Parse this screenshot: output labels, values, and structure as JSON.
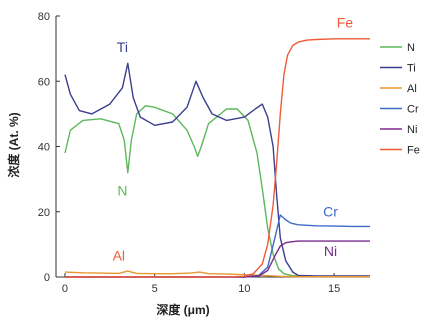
{
  "chart_data": {
    "type": "line",
    "xlabel": "深度 (μm)",
    "ylabel": "浓度 (At. %)",
    "xlim": [
      -0.5,
      17
    ],
    "ylim": [
      0,
      80
    ],
    "x_ticks": [
      0,
      5,
      10,
      15
    ],
    "y_ticks": [
      0,
      20,
      40,
      60,
      80
    ],
    "grid": false,
    "legend_position": "right",
    "series": [
      {
        "name": "N",
        "color": "#5cb85c",
        "x": [
          0,
          0.3,
          1,
          2,
          3,
          3.3,
          3.5,
          3.7,
          4,
          4.5,
          5,
          6,
          6.8,
          7.2,
          7.4,
          7.6,
          8,
          9,
          9.6,
          10.2,
          10.7,
          11,
          11.3,
          11.6,
          11.9,
          12.2,
          12.6,
          13,
          14,
          15,
          16,
          17
        ],
        "y": [
          38,
          45,
          48,
          48.5,
          47,
          42,
          32,
          42,
          50,
          52.5,
          52,
          50,
          45,
          40,
          37,
          40,
          47,
          51.5,
          51.5,
          48,
          38,
          27,
          15,
          7,
          2.5,
          1,
          0.5,
          0.3,
          0.2,
          0.2,
          0.2,
          0.2
        ]
      },
      {
        "name": "Ti",
        "color": "#3b3f8f",
        "x": [
          0,
          0.3,
          0.8,
          1.5,
          2.5,
          3.2,
          3.5,
          3.8,
          4.2,
          5,
          6,
          6.8,
          7.3,
          7.7,
          8.2,
          9,
          10,
          10.6,
          11,
          11.3,
          11.6,
          11.8,
          12,
          12.3,
          12.7,
          13,
          14,
          15,
          16,
          17
        ],
        "y": [
          62,
          56,
          51,
          50,
          53,
          58,
          65.5,
          55,
          49,
          46.5,
          47.5,
          52,
          60,
          55,
          50,
          48,
          49,
          51.5,
          53,
          49,
          40,
          25,
          12,
          5,
          1.5,
          0.5,
          0.3,
          0.3,
          0.3,
          0.3
        ]
      },
      {
        "name": "Al",
        "color": "#e8962e",
        "x": [
          0,
          1,
          2,
          3,
          3.5,
          4,
          5,
          6,
          7,
          7.5,
          8,
          9,
          10,
          11,
          12,
          13,
          14,
          15,
          16,
          17
        ],
        "y": [
          1.5,
          1.3,
          1.2,
          1.1,
          1.8,
          1.1,
          1.0,
          1.0,
          1.2,
          1.5,
          1.0,
          0.9,
          0.7,
          0.5,
          0.2,
          0.1,
          0.1,
          0.1,
          0.1,
          0.1
        ]
      },
      {
        "name": "Cr",
        "color": "#3d6bc8",
        "x": [
          0,
          5,
          10,
          10.8,
          11.3,
          11.7,
          12.0,
          12.3,
          12.6,
          13,
          14,
          15,
          16,
          17
        ],
        "y": [
          0,
          0,
          0,
          0.5,
          3,
          12,
          19,
          17.5,
          16.5,
          16,
          15.7,
          15.6,
          15.5,
          15.5
        ]
      },
      {
        "name": "Ni",
        "color": "#7b2a8c",
        "x": [
          0,
          5,
          10,
          10.8,
          11.3,
          11.7,
          12.0,
          12.3,
          12.6,
          13,
          14,
          15,
          16,
          17
        ],
        "y": [
          0,
          0,
          0,
          0.3,
          2,
          6.5,
          9.5,
          10.5,
          10.8,
          11,
          11,
          11,
          11,
          11
        ]
      },
      {
        "name": "Fe",
        "color": "#ef5b39",
        "x": [
          0,
          5,
          9,
          10,
          10.5,
          11,
          11.3,
          11.6,
          11.8,
          12.0,
          12.2,
          12.4,
          12.7,
          13,
          13.5,
          14,
          15,
          16,
          17
        ],
        "y": [
          0,
          0,
          0,
          0.2,
          1,
          4,
          10,
          22,
          35,
          50,
          62,
          68,
          71,
          72,
          72.6,
          72.8,
          73,
          73,
          73
        ]
      }
    ],
    "annotations": [
      {
        "text": "Fe",
        "x": 15.6,
        "y": 76.5,
        "color": "#ef5b39"
      },
      {
        "text": "Ti",
        "x": 3.2,
        "y": 69,
        "color": "#3b3f8f"
      },
      {
        "text": "N",
        "x": 3.2,
        "y": 25,
        "color": "#5cb85c"
      },
      {
        "text": "Cr",
        "x": 14.8,
        "y": 18.5,
        "color": "#3d6bc8"
      },
      {
        "text": "Ni",
        "x": 14.8,
        "y": 6.5,
        "color": "#7b2a8c"
      },
      {
        "text": "Al",
        "x": 3.0,
        "y": 5,
        "color": "#ef5b39"
      }
    ]
  }
}
